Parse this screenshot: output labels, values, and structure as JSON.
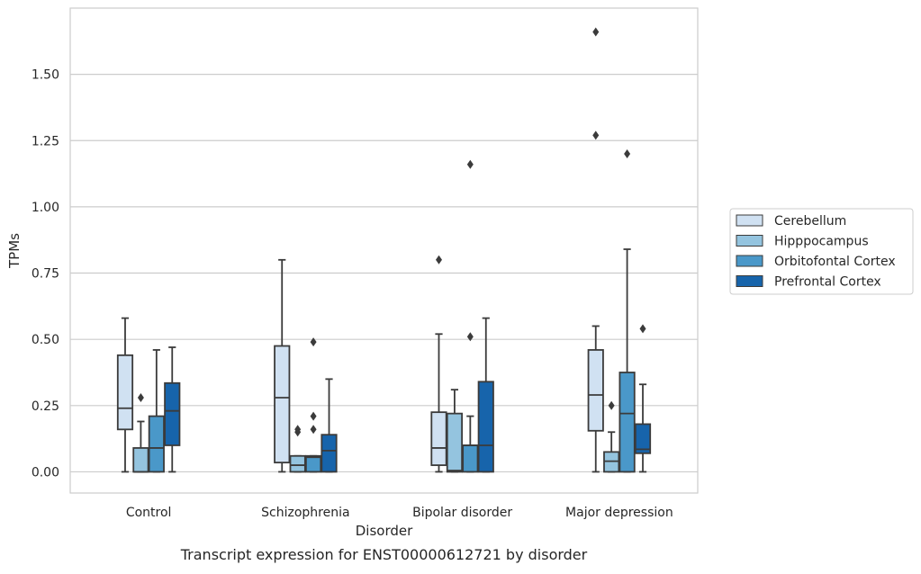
{
  "chart_data": {
    "type": "boxplot",
    "title": "",
    "caption": "Transcript expression for ENST00000612721 by disorder",
    "xlabel": "Disorder",
    "ylabel": "TPMs",
    "ylim": [
      -0.08,
      1.75
    ],
    "yticks": [
      0.0,
      0.25,
      0.5,
      0.75,
      1.0,
      1.25,
      1.5
    ],
    "ytick_labels": [
      "0.00",
      "0.25",
      "0.50",
      "0.75",
      "1.00",
      "1.25",
      "1.50"
    ],
    "grid": "horizontal",
    "legend_position": "right",
    "categories": [
      "Control",
      "Schizophrenia",
      "Bipolar disorder",
      "Major depression"
    ],
    "series": [
      {
        "name": "Cerebellum",
        "color": "#d0e1f2",
        "boxes": [
          {
            "whislo": 0.0,
            "q1": 0.16,
            "med": 0.24,
            "q3": 0.44,
            "whishi": 0.58,
            "fliers": []
          },
          {
            "whislo": 0.0,
            "q1": 0.035,
            "med": 0.28,
            "q3": 0.475,
            "whishi": 0.8,
            "fliers": []
          },
          {
            "whislo": 0.0,
            "q1": 0.025,
            "med": 0.09,
            "q3": 0.225,
            "whishi": 0.52,
            "fliers": [
              0.8
            ]
          },
          {
            "whislo": 0.0,
            "q1": 0.155,
            "med": 0.29,
            "q3": 0.46,
            "whishi": 0.55,
            "fliers": [
              1.27,
              1.66
            ]
          }
        ]
      },
      {
        "name": "Hipppocampus",
        "color": "#94c4df",
        "boxes": [
          {
            "whislo": 0.0,
            "q1": 0.0,
            "med": 0.0,
            "q3": 0.09,
            "whishi": 0.19,
            "fliers": [
              0.28
            ]
          },
          {
            "whislo": 0.0,
            "q1": 0.0,
            "med": 0.025,
            "q3": 0.06,
            "whishi": 0.06,
            "fliers": [
              0.15,
              0.16
            ]
          },
          {
            "whislo": 0.0,
            "q1": 0.0,
            "med": 0.005,
            "q3": 0.22,
            "whishi": 0.31,
            "fliers": []
          },
          {
            "whislo": 0.0,
            "q1": 0.0,
            "med": 0.04,
            "q3": 0.075,
            "whishi": 0.15,
            "fliers": [
              0.25
            ]
          }
        ]
      },
      {
        "name": "Orbitofontal Cortex",
        "color": "#4a98c9",
        "boxes": [
          {
            "whislo": 0.0,
            "q1": 0.0,
            "med": 0.09,
            "q3": 0.21,
            "whishi": 0.46,
            "fliers": []
          },
          {
            "whislo": 0.0,
            "q1": 0.0,
            "med": 0.055,
            "q3": 0.06,
            "whishi": 0.06,
            "fliers": [
              0.16,
              0.21,
              0.49
            ]
          },
          {
            "whislo": 0.0,
            "q1": 0.0,
            "med": 0.1,
            "q3": 0.1,
            "whishi": 0.21,
            "fliers": [
              0.51,
              1.16
            ]
          },
          {
            "whislo": 0.0,
            "q1": 0.0,
            "med": 0.22,
            "q3": 0.375,
            "whishi": 0.84,
            "fliers": [
              1.2
            ]
          }
        ]
      },
      {
        "name": "Prefrontal Cortex",
        "color": "#1764ab",
        "boxes": [
          {
            "whislo": 0.0,
            "q1": 0.1,
            "med": 0.23,
            "q3": 0.335,
            "whishi": 0.47,
            "fliers": []
          },
          {
            "whislo": 0.0,
            "q1": 0.0,
            "med": 0.08,
            "q3": 0.14,
            "whishi": 0.35,
            "fliers": []
          },
          {
            "whislo": 0.0,
            "q1": 0.0,
            "med": 0.1,
            "q3": 0.34,
            "whishi": 0.58,
            "fliers": []
          },
          {
            "whislo": 0.0,
            "q1": 0.07,
            "med": 0.085,
            "q3": 0.18,
            "whishi": 0.33,
            "fliers": [
              0.54
            ]
          }
        ]
      }
    ]
  }
}
